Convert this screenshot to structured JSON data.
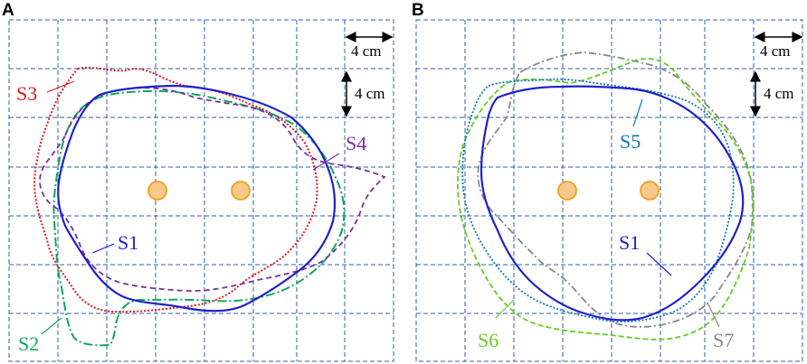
{
  "panels": [
    {
      "letter": "A",
      "scale_horizontal": "4 cm",
      "scale_vertical": "4 cm",
      "curves": [
        {
          "label": "S1",
          "color": "#1f22c8",
          "style": "solid"
        },
        {
          "label": "S2",
          "color": "#10a85a",
          "style": "dashdot"
        },
        {
          "label": "S3",
          "color": "#e3181e",
          "style": "dotted"
        },
        {
          "label": "S4",
          "color": "#7b2fa0",
          "style": "dashed"
        }
      ],
      "marker_color": "#f0a020"
    },
    {
      "letter": "B",
      "scale_horizontal": "4 cm",
      "scale_vertical": "4 cm",
      "curves": [
        {
          "label": "S1",
          "color": "#1f22c8",
          "style": "solid"
        },
        {
          "label": "S5",
          "color": "#1177bb",
          "style": "dotted"
        },
        {
          "label": "S6",
          "color": "#66cc22",
          "style": "dashed"
        },
        {
          "label": "S7",
          "color": "#888888",
          "style": "dashdot"
        }
      ],
      "marker_color": "#f0a020"
    }
  ],
  "grid_color": "#2f5fa8"
}
